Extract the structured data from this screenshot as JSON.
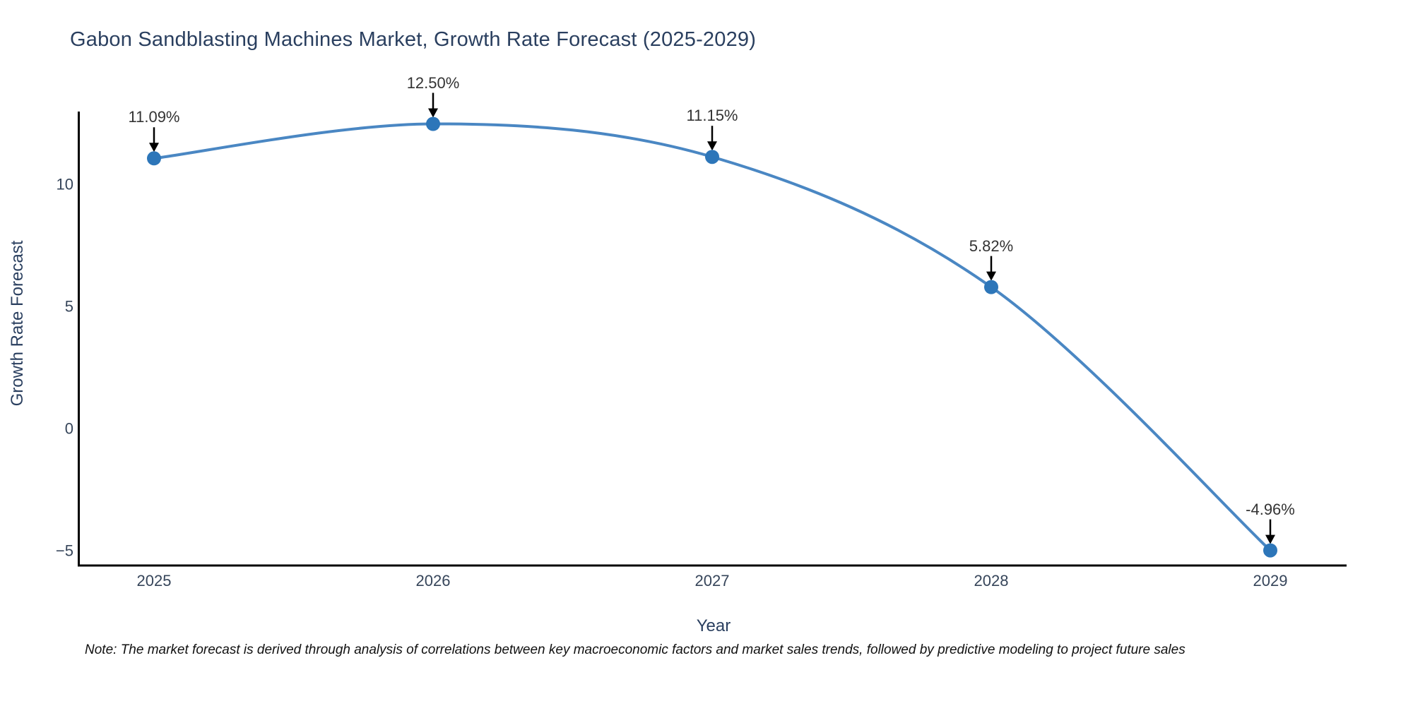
{
  "title": "Gabon Sandblasting Machines Market, Growth Rate Forecast (2025-2029)",
  "note": "Note: The market forecast is derived through analysis of correlations between key macroeconomic factors and market sales trends, followed by predictive modeling to project future sales",
  "colors": {
    "line": "#4a87c3",
    "marker": "#2d76b9",
    "axis": "#000000",
    "arrow": "#000000",
    "title_text": "#2a3f5f",
    "tick_text": "#36455a",
    "annotation_text": "#333333",
    "background": "#ffffff"
  },
  "chart_data": {
    "type": "line",
    "line_shape": "spline",
    "title": "Gabon Sandblasting Machines Market, Growth Rate Forecast (2025-2029)",
    "xlabel": "Year",
    "ylabel": "Growth Rate Forecast",
    "x": [
      2025,
      2026,
      2027,
      2028,
      2029
    ],
    "values": [
      11.09,
      12.5,
      11.15,
      5.82,
      -4.96
    ],
    "point_labels": [
      "11.09%",
      "12.50%",
      "11.15%",
      "5.82%",
      "-4.96%"
    ],
    "x_tick_labels": [
      "2025",
      "2026",
      "2027",
      "2028",
      "2029"
    ],
    "y_ticks": [
      10,
      5,
      0,
      -5
    ],
    "y_tick_labels": [
      "10",
      "5",
      "0",
      "−5"
    ],
    "ylim": [
      -5.6,
      13.0
    ],
    "grid": false,
    "legend": "none",
    "annotations_have_arrows": true,
    "marker_size": 10,
    "line_width": 4
  }
}
